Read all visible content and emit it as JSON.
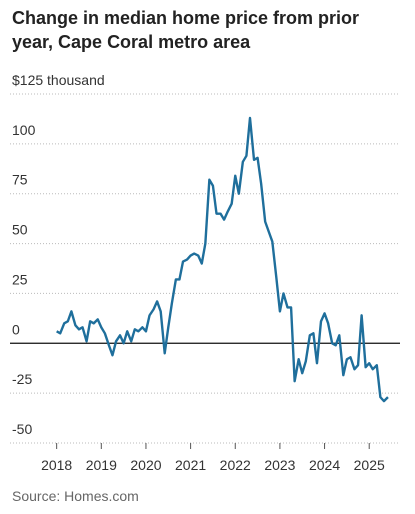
{
  "chart_data": {
    "type": "line",
    "title": "Change in median home price from prior year, Cape Coral metro area",
    "source": "Source: Homes.com",
    "color": "#1f6f9c",
    "x": [
      2018.0,
      2018.08,
      2018.17,
      2018.25,
      2018.33,
      2018.42,
      2018.5,
      2018.58,
      2018.67,
      2018.75,
      2018.83,
      2018.92,
      2019.0,
      2019.08,
      2019.17,
      2019.25,
      2019.33,
      2019.42,
      2019.5,
      2019.58,
      2019.67,
      2019.75,
      2019.83,
      2019.92,
      2020.0,
      2020.08,
      2020.17,
      2020.25,
      2020.33,
      2020.42,
      2020.5,
      2020.58,
      2020.67,
      2020.75,
      2020.83,
      2020.92,
      2021.0,
      2021.08,
      2021.17,
      2021.25,
      2021.33,
      2021.42,
      2021.5,
      2021.58,
      2021.67,
      2021.75,
      2021.83,
      2021.92,
      2022.0,
      2022.08,
      2022.17,
      2022.25,
      2022.33,
      2022.42,
      2022.5,
      2022.58,
      2022.67,
      2022.75,
      2022.83,
      2022.92,
      2023.0,
      2023.08,
      2023.17,
      2023.25,
      2023.33,
      2023.42,
      2023.5,
      2023.58,
      2023.67,
      2023.75,
      2023.83,
      2023.92,
      2024.0,
      2024.08,
      2024.17,
      2024.25,
      2024.33,
      2024.42,
      2024.5,
      2024.58,
      2024.67,
      2024.75,
      2024.83,
      2024.92,
      2025.0,
      2025.08,
      2025.17,
      2025.25,
      2025.33,
      2025.42
    ],
    "values": [
      6,
      5,
      10,
      11,
      16,
      9,
      7,
      8,
      1,
      11,
      10,
      12,
      8,
      5,
      -1,
      -6,
      1,
      4,
      0,
      6,
      1,
      7,
      6,
      8,
      6,
      14,
      17,
      21,
      16,
      -5,
      8,
      20,
      32,
      32,
      41,
      42,
      44,
      45,
      44,
      40,
      50,
      82,
      79,
      65,
      65,
      62,
      66,
      70,
      84,
      75,
      91,
      94,
      113,
      92,
      93,
      80,
      61,
      56,
      51,
      33,
      16,
      25,
      18,
      18,
      -19,
      -8,
      -15,
      -9,
      4,
      5,
      -10,
      11,
      15,
      10,
      0,
      -1,
      4,
      -16,
      -8,
      -7,
      -13,
      -11,
      14,
      -12,
      -10,
      -13,
      -11,
      -27,
      -29,
      -27
    ],
    "xlim": [
      2017,
      2025.6
    ],
    "xticks": [
      2018,
      2019,
      2020,
      2021,
      2022,
      2023,
      2024,
      2025
    ],
    "ylim": [
      -50,
      125
    ],
    "yticks": [
      -50,
      -25,
      0,
      25,
      50,
      75,
      100,
      {
        "value": 125,
        "label": "$125 thousand"
      }
    ],
    "grid": true
  }
}
